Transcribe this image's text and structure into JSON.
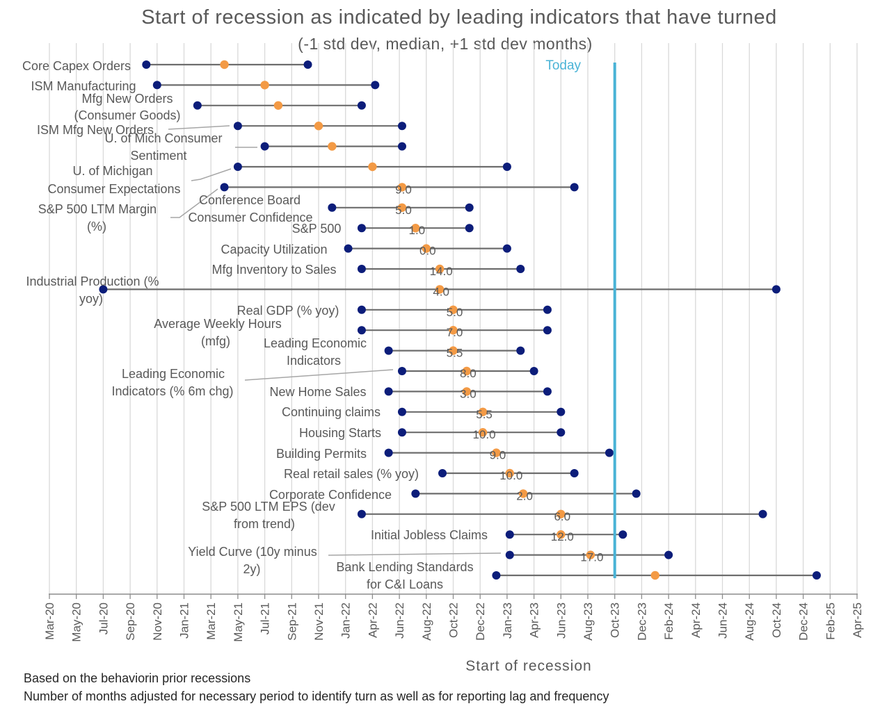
{
  "chart_data": {
    "type": "dumbbell",
    "title": "Start of recession as indicated by leading indicators that have turned",
    "subtitle": "(-1 std dev, median, +1 std dev months)",
    "xlabel": "Start of recession",
    "x_ticks": [
      "Mar-20",
      "May-20",
      "Jul-20",
      "Sep-20",
      "Nov-20",
      "Jan-21",
      "Mar-21",
      "May-21",
      "Jul-21",
      "Sep-21",
      "Nov-21",
      "Jan-22",
      "Apr-22",
      "Jun-22",
      "Aug-22",
      "Oct-22",
      "Dec-22",
      "Jan-23",
      "Apr-23",
      "Jun-23",
      "Aug-23",
      "Oct-23",
      "Dec-23",
      "Feb-24",
      "Apr-24",
      "Jun-24",
      "Aug-24",
      "Oct-24",
      "Dec-24",
      "Feb-25",
      "Apr-25"
    ],
    "today_label": "Today",
    "today_x": 21.0,
    "colors": {
      "endpoint": "#0c1d7a",
      "median": "#f39a45",
      "range_line": "#6d6d6d",
      "today": "#4ab3d6",
      "grid": "#d9d9d9"
    },
    "series": [
      {
        "label": "Core Capex Orders",
        "low": 3.6,
        "median": 6.5,
        "high": 9.6,
        "value_label": ""
      },
      {
        "label": "ISM Manufacturing",
        "low": 4.0,
        "median": 8.0,
        "high": 12.1,
        "value_label": ""
      },
      {
        "label": "Mfg New Orders (Consumer Goods)",
        "low": 5.5,
        "median": 8.5,
        "high": 11.6,
        "value_label": ""
      },
      {
        "label": "ISM Mfg New Orders",
        "low": 7.0,
        "median": 10.0,
        "high": 13.1,
        "value_label": ""
      },
      {
        "label": "U. of Mich Consumer Sentiment",
        "low": 8.0,
        "median": 10.5,
        "high": 13.1,
        "value_label": ""
      },
      {
        "label": "U. of Michigan Consumer Expectations",
        "low": 7.0,
        "median": 12.0,
        "high": 17.0,
        "value_label": ""
      },
      {
        "label": "S&P 500 LTM Margin (%)",
        "low": 6.5,
        "median": 13.1,
        "high": 19.5,
        "value_label": "9.0"
      },
      {
        "label": "Conference Board Consumer Confidence",
        "low": 10.5,
        "median": 13.1,
        "high": 15.6,
        "value_label": "5.0"
      },
      {
        "label": "S&P 500",
        "low": 11.6,
        "median": 13.6,
        "high": 15.6,
        "value_label": "1.0"
      },
      {
        "label": "Capacity Utilization",
        "low": 11.1,
        "median": 14.0,
        "high": 17.0,
        "value_label": "0.0"
      },
      {
        "label": "Mfg Inventory to Sales",
        "low": 11.6,
        "median": 14.5,
        "high": 17.5,
        "value_label": "14.0"
      },
      {
        "label": "Industrial Production (% yoy)",
        "low": 2.0,
        "median": 14.5,
        "high": 27.0,
        "value_label": "4.0"
      },
      {
        "label": "Real GDP (% yoy)",
        "low": 11.6,
        "median": 15.0,
        "high": 18.5,
        "value_label": "5.0"
      },
      {
        "label": "Average Weekly Hours (mfg)",
        "low": 11.6,
        "median": 15.0,
        "high": 18.5,
        "value_label": "7.0"
      },
      {
        "label": "Leading Economic Indicators",
        "low": 12.6,
        "median": 15.0,
        "high": 17.5,
        "value_label": "5.5"
      },
      {
        "label": "Leading Economic Indicators (% 6m chg)",
        "low": 13.1,
        "median": 15.5,
        "high": 18.0,
        "value_label": "8.0"
      },
      {
        "label": "New Home Sales",
        "low": 12.6,
        "median": 15.5,
        "high": 18.5,
        "value_label": "3.0"
      },
      {
        "label": "Continuing claims",
        "low": 13.1,
        "median": 16.1,
        "high": 19.0,
        "value_label": "5.5"
      },
      {
        "label": "Housing Starts",
        "low": 13.1,
        "median": 16.1,
        "high": 19.0,
        "value_label": "10.0"
      },
      {
        "label": "Building Permits",
        "low": 12.6,
        "median": 16.6,
        "high": 20.8,
        "value_label": "9.0"
      },
      {
        "label": "Real retail sales (% yoy)",
        "low": 14.6,
        "median": 17.1,
        "high": 19.5,
        "value_label": "10.0"
      },
      {
        "label": "Corporate Confidence",
        "low": 13.6,
        "median": 17.6,
        "high": 21.8,
        "value_label": "2.0"
      },
      {
        "label": "S&P 500 LTM EPS (dev from trend)",
        "low": 11.6,
        "median": 19.0,
        "high": 26.5,
        "value_label": "6.0"
      },
      {
        "label": "Initial Jobless Claims",
        "low": 17.1,
        "median": 19.0,
        "high": 21.3,
        "value_label": "12.0"
      },
      {
        "label": "Yield Curve (10y minus 2y)",
        "low": 17.1,
        "median": 20.1,
        "high": 23.0,
        "value_label": "17.0"
      },
      {
        "label": "Bank Lending Standards for C&I Loans",
        "low": 16.6,
        "median": 22.5,
        "high": 28.5,
        "value_label": ""
      }
    ]
  },
  "notes": [
    "Based on the behaviorin prior recessions",
    "Number of months adjusted for necessary period to identify turn as well as for reporting lag and frequency"
  ]
}
